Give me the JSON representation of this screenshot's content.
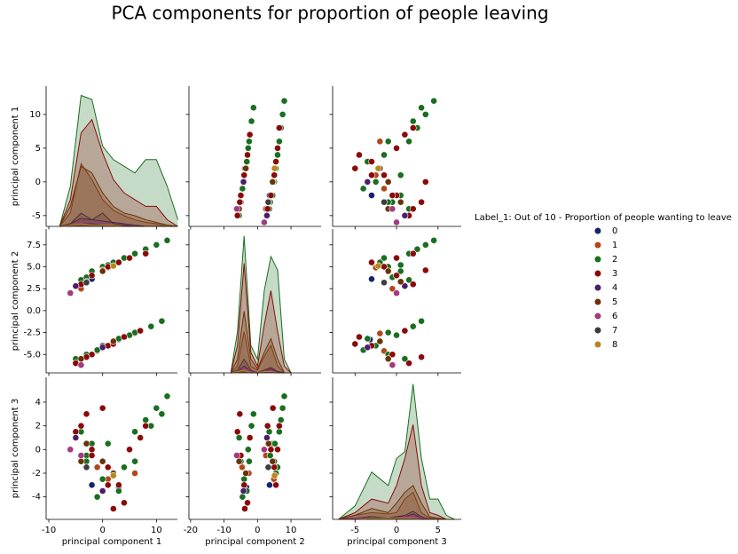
{
  "chart_data": {
    "type": "pairplot",
    "title": "PCA components for proportion of people leaving",
    "legend_title": "Label_1: Out of 10 - Proportion of people wanting to leave",
    "variables": [
      "principal component 1",
      "principal component 2",
      "principal component 3"
    ],
    "xlim": [
      [
        -10.5,
        13.9
      ],
      [
        -20.5,
        19
      ],
      [
        -7.7,
        7.8
      ]
    ],
    "xticks": [
      [
        -10,
        0,
        10
      ],
      [
        -20,
        -10,
        0,
        10
      ],
      [
        -5,
        0,
        5
      ]
    ],
    "ylim": [
      [
        -6.6,
        14.2
      ],
      [
        -7.1,
        9.3
      ],
      [
        -5.9,
        6.1
      ]
    ],
    "yticks": [
      [
        -5,
        0,
        5,
        10
      ],
      [
        {
          "value": -5,
          "label": "-5.0"
        },
        {
          "value": -2.5,
          "label": "-2.5"
        },
        {
          "value": 0,
          "label": "0.0"
        },
        {
          "value": 2.5,
          "label": "2.5"
        },
        {
          "value": 5,
          "label": "5.0"
        },
        {
          "value": 7.5,
          "label": "7.5"
        }
      ],
      [
        -4,
        -2,
        0,
        2,
        4
      ]
    ],
    "density_lim": [
      0,
      1.05
    ],
    "kde": [
      {
        "x": [
          -8,
          -6,
          -4,
          -2,
          0,
          2,
          4,
          6,
          8,
          10,
          12,
          14
        ],
        "density": [
          [
            0,
            0.02,
            0.1,
            0.05,
            0.1,
            0.02,
            0.01,
            0,
            0,
            0,
            0,
            0
          ],
          [
            0,
            0.1,
            0.47,
            0.35,
            0.2,
            0.12,
            0.08,
            0.05,
            0.03,
            0.02,
            0,
            0
          ],
          [
            0,
            0.3,
            0.98,
            0.95,
            0.6,
            0.5,
            0.45,
            0.4,
            0.5,
            0.5,
            0.3,
            0.05
          ],
          [
            0,
            0.2,
            0.7,
            0.8,
            0.55,
            0.35,
            0.25,
            0.2,
            0.15,
            0.15,
            0.05,
            0
          ],
          [
            0,
            0.02,
            0.06,
            0.05,
            0.04,
            0.03,
            0.02,
            0.01,
            0,
            0,
            0,
            0
          ],
          [
            0,
            0.15,
            0.45,
            0.4,
            0.25,
            0.15,
            0.1,
            0.08,
            0.05,
            0.03,
            0.01,
            0
          ],
          [
            0,
            0.01,
            0.03,
            0.03,
            0.02,
            0.01,
            0,
            0,
            0,
            0,
            0,
            0
          ],
          [
            0,
            0.01,
            0.02,
            0.02,
            0.01,
            0.01,
            0,
            0,
            0,
            0,
            0,
            0
          ],
          [
            0,
            0.01,
            0.02,
            0.01,
            0.01,
            0.01,
            0,
            0,
            0,
            0,
            0,
            0
          ]
        ]
      },
      {
        "x": [
          -8,
          -6,
          -4,
          -2,
          0,
          2,
          4,
          6,
          8,
          10
        ],
        "density": [
          [
            0,
            0.02,
            0.1,
            0.02,
            0,
            0.02,
            0.04,
            0.01,
            0,
            0
          ],
          [
            0,
            0.05,
            0.3,
            0.05,
            0.02,
            0.12,
            0.2,
            0.05,
            0,
            0
          ],
          [
            0,
            0.3,
            1.0,
            0.2,
            0.1,
            0.6,
            0.85,
            0.75,
            0.1,
            0
          ],
          [
            0,
            0.2,
            0.8,
            0.15,
            0.05,
            0.35,
            0.6,
            0.3,
            0.05,
            0
          ],
          [
            0,
            0.01,
            0.05,
            0.01,
            0,
            0.01,
            0.03,
            0.01,
            0,
            0
          ],
          [
            0,
            0.1,
            0.45,
            0.1,
            0.03,
            0.15,
            0.25,
            0.1,
            0,
            0
          ],
          [
            0,
            0.01,
            0.03,
            0.01,
            0,
            0.01,
            0.02,
            0,
            0,
            0
          ],
          [
            0,
            0.01,
            0.02,
            0,
            0,
            0.01,
            0.01,
            0,
            0,
            0
          ],
          [
            0,
            0.01,
            0.02,
            0,
            0,
            0.01,
            0.01,
            0,
            0,
            0
          ]
        ]
      },
      {
        "x": [
          -7,
          -5,
          -3,
          -1,
          0,
          1,
          2,
          3,
          4,
          5,
          6,
          7
        ],
        "density": [
          [
            0,
            0.01,
            0.02,
            0.01,
            0.02,
            0.03,
            0.06,
            0.02,
            0,
            0,
            0,
            0
          ],
          [
            0,
            0.03,
            0.05,
            0.04,
            0.05,
            0.15,
            0.2,
            0.05,
            0.01,
            0,
            0,
            0
          ],
          [
            0,
            0.1,
            0.35,
            0.25,
            0.45,
            0.5,
            1.0,
            0.45,
            0.15,
            0.15,
            0.03,
            0
          ],
          [
            0,
            0.05,
            0.15,
            0.12,
            0.25,
            0.45,
            0.7,
            0.25,
            0.05,
            0.03,
            0,
            0
          ],
          [
            0,
            0.01,
            0.02,
            0.01,
            0.02,
            0.02,
            0.04,
            0.01,
            0,
            0,
            0,
            0
          ],
          [
            0,
            0.03,
            0.08,
            0.05,
            0.12,
            0.2,
            0.25,
            0.12,
            0.02,
            0.01,
            0,
            0
          ],
          [
            0,
            0.01,
            0.01,
            0.01,
            0.01,
            0.02,
            0.02,
            0.01,
            0,
            0,
            0,
            0
          ],
          [
            0,
            0,
            0.01,
            0.01,
            0.01,
            0.01,
            0.01,
            0,
            0,
            0,
            0,
            0
          ],
          [
            0,
            0,
            0.01,
            0.01,
            0.01,
            0.01,
            0.01,
            0,
            0,
            0,
            0,
            0
          ]
        ]
      }
    ],
    "series": [
      {
        "name": "0",
        "color": "#14246e",
        "values": [
          [
            -2,
            3
          ],
          [
            3.6,
            -3.3
          ],
          [
            -3,
            -3.2
          ]
        ]
      },
      {
        "name": "1",
        "color": "#b3471a",
        "values": [
          [
            -4,
            1,
            -1,
            6
          ],
          [
            2.5,
            4.9,
            -4.6,
            -2.6
          ],
          [
            -0.5,
            -2.5,
            -1.5,
            -2
          ]
        ]
      },
      {
        "name": "2",
        "color": "#1a6e1f",
        "values": [
          [
            -4,
            -3,
            -2,
            0,
            2,
            4,
            6,
            8,
            10,
            12,
            -5,
            -3,
            0,
            3,
            6,
            9,
            11,
            1,
            5,
            -1
          ],
          [
            3.5,
            3.8,
            4.5,
            5,
            5.5,
            6,
            6.5,
            7,
            7.5,
            8,
            -5.5,
            -5,
            -4,
            -3.2,
            -2.5,
            -1.8,
            -1.2,
            5.2,
            -2.8,
            -4.5
          ],
          [
            1.5,
            -0.5,
            0.5,
            -1,
            -2,
            -1.5,
            1.5,
            2.5,
            3.5,
            4.5,
            1,
            -1,
            -2.5,
            -3.5,
            -1,
            2,
            3,
            0.5,
            0,
            -4
          ]
        ]
      },
      {
        "name": "3",
        "color": "#8a0a0a",
        "values": [
          [
            -4,
            -2,
            1,
            3,
            5,
            8,
            -5,
            -2,
            1,
            4,
            7,
            0,
            2,
            -3
          ],
          [
            3,
            4,
            5,
            5.5,
            6,
            6.5,
            -6,
            -5,
            -4,
            -3,
            -2.3,
            4.6,
            -3.8,
            -5.3
          ],
          [
            2,
            0,
            -1.5,
            -3,
            0,
            2,
            1.5,
            -0.5,
            -3,
            -4.5,
            1,
            3.5,
            -5,
            3
          ]
        ]
      },
      {
        "name": "4",
        "color": "#4e1c6e",
        "values": [
          [
            -5,
            0
          ],
          [
            2.8,
            -4.2
          ],
          [
            1,
            -3.5
          ]
        ]
      },
      {
        "name": "5",
        "color": "#6b3206",
        "values": [
          [
            -3,
            0,
            -4,
            2
          ],
          [
            3.3,
            4.5,
            -5.5,
            -3.5
          ],
          [
            0.5,
            -1,
            -1,
            -2
          ]
        ]
      },
      {
        "name": "6",
        "color": "#a33a82",
        "values": [
          [
            -6,
            -4
          ],
          [
            2,
            -6.2
          ],
          [
            0,
            -0.5
          ]
        ]
      },
      {
        "name": "7",
        "color": "#3c3c3c",
        "values": [
          [
            -3
          ],
          [
            3.2
          ],
          [
            -1.5
          ]
        ]
      },
      {
        "name": "8",
        "color": "#b8861c",
        "values": [
          [
            2
          ],
          [
            5.1
          ],
          [
            -2.2
          ]
        ]
      }
    ]
  }
}
